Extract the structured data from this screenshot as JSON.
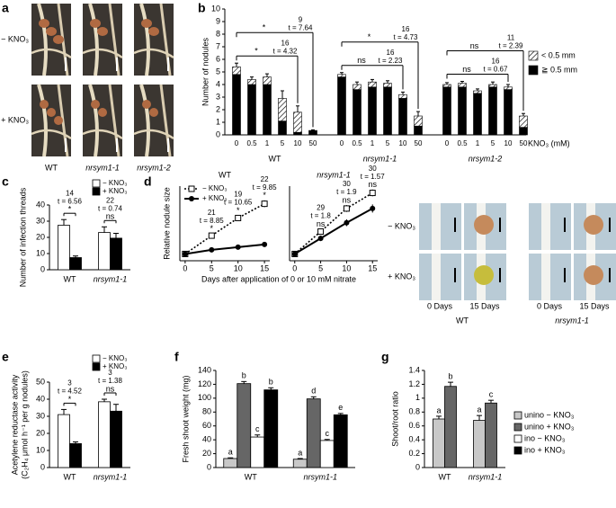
{
  "panel_labels": [
    "a",
    "b",
    "c",
    "d",
    "e",
    "f",
    "g"
  ],
  "photos": {
    "a": {
      "rows": [
        "− KNO₃",
        "+ KNO₃"
      ],
      "columns": [
        "WT",
        "nrsym1-1",
        "nrsym1-2"
      ]
    },
    "d": {
      "rows": [
        "− KNO₃",
        "+ KNO₃"
      ],
      "days": [
        "0 Days",
        "15 Days",
        "0 Days",
        "15 Days"
      ],
      "columns": [
        "WT",
        "nrsym1-1"
      ]
    }
  },
  "chart_data": [
    {
      "type": "stacked_bar",
      "ylabel": "Number of nodules",
      "xlabel": "KNO₃ (mM)",
      "ylim": [
        0,
        10
      ],
      "yticks": [
        0,
        1,
        2,
        3,
        4,
        5,
        6,
        7,
        8,
        9,
        10
      ],
      "groups": [
        "WT",
        "nrsym1-1",
        "nrsym1-2"
      ],
      "categories": [
        "0",
        "0.5",
        "1",
        "5",
        "10",
        "50",
        "0",
        "0.5",
        "1",
        "5",
        "10",
        "50",
        "0",
        "0.5",
        "1",
        "5",
        "10",
        "50"
      ],
      "series": [
        {
          "name": "≧ 0.5 mm",
          "color": "#000000",
          "values": [
            4.8,
            4.0,
            4.0,
            1.1,
            0.2,
            0.35,
            4.6,
            3.6,
            3.8,
            3.8,
            2.9,
            0.7,
            3.8,
            3.8,
            3.3,
            3.8,
            3.6,
            0.6
          ]
        },
        {
          "name": "< 0.5 mm",
          "pattern": "hatch",
          "values": [
            0.6,
            0.4,
            0.6,
            1.8,
            1.6,
            0,
            0.2,
            0.4,
            0.4,
            0.3,
            0.3,
            0.8,
            0.2,
            0.3,
            0.2,
            0.2,
            0.2,
            0.9
          ],
          "errors": [
            0.3,
            0.2,
            0.25,
            0.6,
            0.5,
            0.05,
            0.15,
            0.2,
            0.2,
            0.2,
            0.2,
            0.35,
            0.15,
            0.15,
            0.15,
            0.2,
            0.2,
            0.2
          ]
        }
      ],
      "tests": [
        [
          {
            "df": "9",
            "t": "t = 7.64",
            "sig": "*"
          },
          {
            "df": "16",
            "t": "t = 4.32",
            "sig": "*"
          }
        ],
        [
          {
            "df": "16",
            "t": "t = 4.73",
            "sig": "*"
          },
          {
            "df": "16",
            "t": "t = 2.23",
            "sig": "ns"
          }
        ],
        [
          {
            "df": "11",
            "t": "t = 2.39",
            "sig": "ns"
          },
          {
            "df": "16",
            "t": "t = 0.67",
            "sig": "ns"
          }
        ]
      ],
      "legend": "right"
    },
    {
      "type": "bar",
      "ylabel": "Number of infection threads",
      "ylim": [
        0,
        40
      ],
      "yticks": [
        0,
        10,
        20,
        30,
        40
      ],
      "categories": [
        "WT",
        "nrsym1-1"
      ],
      "series": [
        {
          "name": "− KNO₃",
          "color": "#ffffff",
          "values": [
            27.5,
            23
          ],
          "errors": [
            3.5,
            3.5
          ]
        },
        {
          "name": "+ KNO₃",
          "color": "#000000",
          "values": [
            7.5,
            19.5
          ],
          "errors": [
            1,
            3
          ]
        }
      ],
      "tests": [
        {
          "df": "14",
          "t": "t = 6.56",
          "sig": "*"
        },
        {
          "df": "22",
          "t": "t = 0.74",
          "sig": "ns"
        }
      ],
      "legend": "top right"
    },
    {
      "type": "line",
      "title": "WT",
      "xlabel": "Days after application of 0 or 10 mM nitrate",
      "ylabel": "Relative nodule size",
      "x": [
        0,
        5,
        10,
        15
      ],
      "xlim": [
        -1,
        16
      ],
      "xticks": [
        0,
        5,
        10,
        15
      ],
      "ylim": [
        0,
        11
      ],
      "series": [
        {
          "name": "− KNO₃",
          "color": "#000000",
          "dash": "dotted",
          "marker": "square",
          "values": [
            1,
            3.7,
            6.3,
            8.4
          ],
          "errors": [
            0.1,
            0.3,
            0.4,
            0.5
          ]
        },
        {
          "name": "+ KNO₃",
          "color": "#000000",
          "marker": "circle",
          "values": [
            1,
            1.6,
            2.0,
            2.4
          ],
          "errors": [
            0.1,
            0.1,
            0.15,
            0.2
          ]
        }
      ],
      "tests": [
        null,
        {
          "df": "21",
          "t": "t = 8.85",
          "sig": "*"
        },
        {
          "df": "19",
          "t": "t = 10.65",
          "sig": "*"
        },
        {
          "df": "22",
          "t": "t = 9.85",
          "sig": "*"
        }
      ],
      "legend": "top left"
    },
    {
      "type": "line",
      "title": "nrsym1-1",
      "x": [
        0,
        5,
        10,
        15
      ],
      "xlim": [
        -1,
        16
      ],
      "xticks": [
        0,
        5,
        10,
        15
      ],
      "ylim": [
        0,
        11
      ],
      "series": [
        {
          "color": "#000000",
          "dash": "dotted",
          "marker": "square",
          "values": [
            1,
            4.3,
            7.7,
            10
          ],
          "errors": [
            0.1,
            0.4,
            0.5,
            0.5
          ]
        },
        {
          "color": "#000000",
          "marker": "circle",
          "values": [
            1,
            3.3,
            5.6,
            7.7
          ],
          "errors": [
            0.1,
            0.4,
            0.5,
            0.6
          ]
        }
      ],
      "tests": [
        null,
        {
          "df": "29",
          "t": "t = 1.8",
          "sig": "ns"
        },
        {
          "df": "30",
          "t": "t = 1.9",
          "sig": "ns"
        },
        {
          "df": "30",
          "t": "t = 1.57",
          "sig": "ns"
        }
      ]
    },
    {
      "type": "bar",
      "ylabel": [
        "Acetylene reductase activity",
        "(C₂H₄ μmol h⁻¹ per g nodules)"
      ],
      "ylim": [
        0,
        50
      ],
      "yticks": [
        0,
        10,
        20,
        30,
        40,
        50
      ],
      "categories": [
        "WT",
        "nrsym1-1"
      ],
      "series": [
        {
          "name": "− KNO₃",
          "color": "#ffffff",
          "values": [
            31,
            38.5
          ],
          "errors": [
            3,
            1.5
          ]
        },
        {
          "name": "+ KNO₃",
          "color": "#000000",
          "values": [
            14,
            33
          ],
          "errors": [
            1,
            4
          ]
        }
      ],
      "tests": [
        {
          "df": "3",
          "t": "t = 4.52",
          "sig": "*"
        },
        {
          "df": "3",
          "t": "t = 1.38",
          "sig": "ns"
        }
      ],
      "legend": "top right"
    },
    {
      "type": "bar",
      "ylabel": "Fresh shoot weight (mg)",
      "ylim": [
        0,
        140
      ],
      "yticks": [
        0,
        20,
        40,
        60,
        80,
        100,
        120,
        140
      ],
      "categories": [
        "WT",
        "nrsym1-1"
      ],
      "series": [
        {
          "name": "unino − KNO₃",
          "color": "#c8c8c8",
          "values": [
            13,
            12
          ],
          "errors": [
            1,
            1
          ],
          "letters": [
            "a",
            "a"
          ]
        },
        {
          "name": "unino + KNO₃",
          "color": "#666666",
          "values": [
            121,
            99
          ],
          "errors": [
            3,
            3
          ],
          "letters": [
            "b",
            "d"
          ]
        },
        {
          "name": "ino − KNO₃",
          "color": "#ffffff",
          "values": [
            44,
            39
          ],
          "errors": [
            3,
            1.5
          ],
          "letters": [
            "c",
            "c"
          ]
        },
        {
          "name": "ino + KNO₃",
          "color": "#000000",
          "values": [
            112,
            76
          ],
          "errors": [
            3,
            2
          ],
          "letters": [
            "b",
            "e"
          ]
        }
      ],
      "legend": "right"
    },
    {
      "type": "bar",
      "ylabel": "Shoot/root ratio",
      "ylim": [
        0,
        1.4
      ],
      "yticks": [
        0,
        0.2,
        0.4,
        0.6,
        0.8,
        1,
        1.2,
        1.4
      ],
      "categories": [
        "WT",
        "nrsym1-1"
      ],
      "series": [
        {
          "color": "#c8c8c8",
          "values": [
            0.7,
            0.68
          ],
          "errors": [
            0.04,
            0.07
          ],
          "letters": [
            "a",
            "a"
          ]
        },
        {
          "color": "#666666",
          "values": [
            1.17,
            0.93
          ],
          "errors": [
            0.06,
            0.04
          ],
          "letters": [
            "b",
            "c"
          ]
        }
      ]
    }
  ]
}
